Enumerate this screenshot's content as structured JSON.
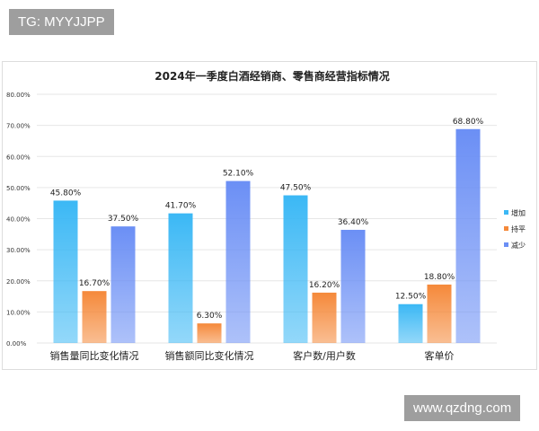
{
  "watermarks": {
    "top_left": "TG: MYYJJPP",
    "bottom_right": "www.qzdng.com"
  },
  "chart_data": {
    "type": "bar",
    "title": "2024年一季度白酒经销商、零售商经营指标情况",
    "categories": [
      "销售量同比变化情况",
      "销售额同比变化情况",
      "客户数/用户数",
      "客单价"
    ],
    "series": [
      {
        "name": "增加",
        "values": [
          45.8,
          41.7,
          47.5,
          12.5
        ],
        "color": "#3bb8f5"
      },
      {
        "name": "持平",
        "values": [
          16.7,
          6.3,
          16.2,
          18.8
        ],
        "color": "#f5893a"
      },
      {
        "name": "减少",
        "values": [
          37.5,
          52.1,
          36.4,
          68.8
        ],
        "color": "#6b8ff5"
      }
    ],
    "ylim": [
      0,
      80
    ],
    "yticks": [
      "0.00%",
      "10.00%",
      "20.00%",
      "30.00%",
      "40.00%",
      "50.00%",
      "60.00%",
      "70.00%",
      "80.00%"
    ],
    "data_labels": [
      [
        "45.80%",
        "41.70%",
        "47.50%",
        "12.50%"
      ],
      [
        "16.70%",
        "6.30%",
        "16.20%",
        "18.80%"
      ],
      [
        "37.50%",
        "52.10%",
        "36.40%",
        "68.80%"
      ]
    ],
    "grid": true,
    "legend": "right"
  }
}
